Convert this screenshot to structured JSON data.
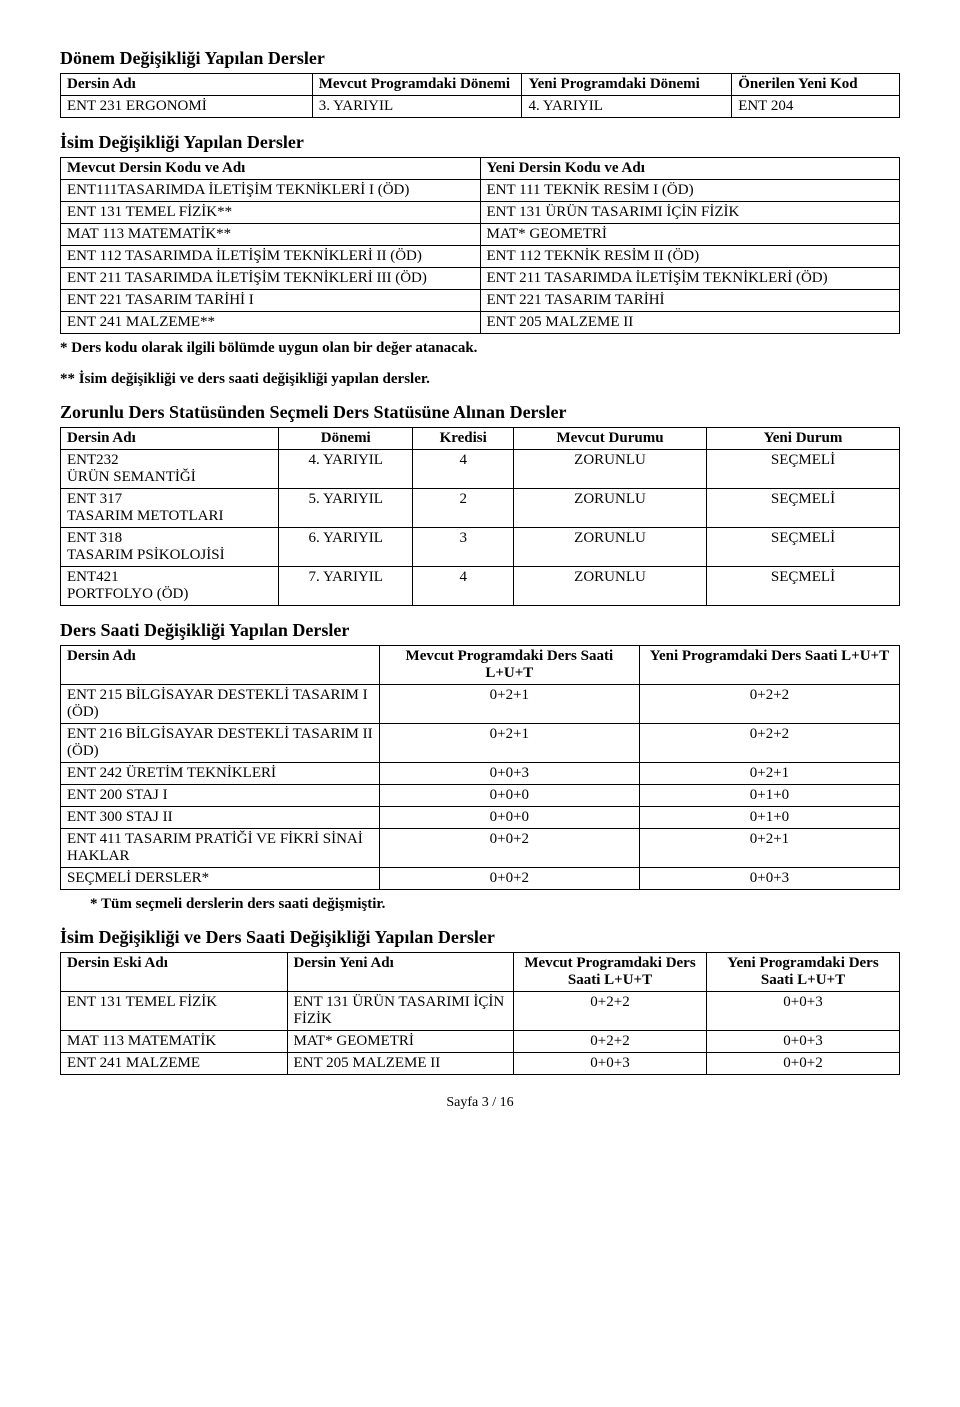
{
  "section1": {
    "title": "Dönem Değişikliği Yapılan Dersler",
    "headers": [
      "Dersin Adı",
      "Mevcut Programdaki Dönemi",
      "Yeni Programdaki Dönemi",
      "Önerilen Yeni Kod"
    ],
    "row": [
      "ENT 231 ERGONOMİ",
      "3. YARIYIL",
      "4. YARIYIL",
      "ENT 204"
    ]
  },
  "section2": {
    "title": "İsim Değişikliği Yapılan Dersler",
    "headers": [
      "Mevcut Dersin Kodu ve Adı",
      "Yeni Dersin Kodu ve Adı"
    ],
    "rows": [
      [
        "ENT111TASARIMDA İLETİŞİM TEKNİKLERİ I (ÖD)",
        "ENT 111 TEKNİK RESİM I (ÖD)"
      ],
      [
        "ENT 131 TEMEL FİZİK**",
        "ENT 131 ÜRÜN TASARIMI İÇİN FİZİK"
      ],
      [
        "MAT 113 MATEMATİK**",
        "MAT* GEOMETRİ"
      ],
      [
        "ENT 112 TASARIMDA İLETİŞİM TEKNİKLERİ II (ÖD)",
        "ENT 112 TEKNİK RESİM II (ÖD)"
      ],
      [
        "ENT 211 TASARIMDA İLETİŞİM TEKNİKLERİ III (ÖD)",
        "ENT 211 TASARIMDA İLETİŞİM TEKNİKLERİ (ÖD)"
      ],
      [
        "ENT 221 TASARIM TARİHİ I",
        "ENT 221 TASARIM TARİHİ"
      ],
      [
        "ENT 241 MALZEME**",
        "ENT 205 MALZEME II"
      ]
    ],
    "note1": "* Ders kodu olarak ilgili bölümde uygun olan bir değer atanacak.",
    "note2": "** İsim değişikliği ve ders saati değişikliği yapılan dersler."
  },
  "section3": {
    "title": "Zorunlu Ders Statüsünden Seçmeli Ders Statüsüne Alınan Dersler",
    "headers": [
      "Dersin Adı",
      "Dönemi",
      "Kredisi",
      "Mevcut Durumu",
      "Yeni Durum"
    ],
    "rows": [
      [
        "ENT232\nÜRÜN SEMANTİĞİ",
        "4. YARIYIL",
        "4",
        "ZORUNLU",
        "SEÇMELİ"
      ],
      [
        "ENT 317\nTASARIM METOTLARI",
        "5. YARIYIL",
        "2",
        "ZORUNLU",
        "SEÇMELİ"
      ],
      [
        "ENT 318\nTASARIM PSİKOLOJİSİ",
        "6. YARIYIL",
        "3",
        "ZORUNLU",
        "SEÇMELİ"
      ],
      [
        "ENT421\nPORTFOLYO (ÖD)",
        "7. YARIYIL",
        "4",
        "ZORUNLU",
        "SEÇMELİ"
      ]
    ]
  },
  "section4": {
    "title": "Ders Saati Değişikliği Yapılan Dersler",
    "headers": [
      "Dersin Adı",
      "Mevcut Programdaki Ders Saati L+U+T",
      "Yeni Programdaki Ders Saati L+U+T"
    ],
    "rows": [
      [
        "ENT 215 BİLGİSAYAR DESTEKLİ TASARIM I (ÖD)",
        "0+2+1",
        "0+2+2"
      ],
      [
        "ENT 216 BİLGİSAYAR DESTEKLİ TASARIM II (ÖD)",
        "0+2+1",
        "0+2+2"
      ],
      [
        "ENT 242 ÜRETİM TEKNİKLERİ",
        "0+0+3",
        "0+2+1"
      ],
      [
        "ENT 200 STAJ I",
        "0+0+0",
        "0+1+0"
      ],
      [
        "ENT 300 STAJ II",
        "0+0+0",
        "0+1+0"
      ],
      [
        "ENT 411 TASARIM PRATİĞİ VE FİKRİ SİNAİ HAKLAR",
        "0+0+2",
        "0+2+1"
      ],
      [
        "SEÇMELİ DERSLER*",
        "0+0+2",
        "0+0+3"
      ]
    ],
    "note": "* Tüm seçmeli derslerin ders saati değişmiştir."
  },
  "section5": {
    "title": "İsim Değişikliği ve Ders Saati Değişikliği Yapılan Dersler",
    "headers": [
      "Dersin Eski Adı",
      "Dersin Yeni Adı",
      "Mevcut Programdaki Ders Saati L+U+T",
      "Yeni Programdaki Ders Saati L+U+T"
    ],
    "rows": [
      [
        "ENT 131 TEMEL FİZİK",
        "ENT 131 ÜRÜN TASARIMI İÇİN FİZİK",
        "0+2+2",
        "0+0+3"
      ],
      [
        "MAT 113 MATEMATİK",
        "MAT* GEOMETRİ",
        "0+2+2",
        "0+0+3"
      ],
      [
        "ENT 241 MALZEME",
        "ENT 205 MALZEME II",
        "0+0+3",
        "0+0+2"
      ]
    ]
  },
  "footer": "Sayfa 3 / 16"
}
